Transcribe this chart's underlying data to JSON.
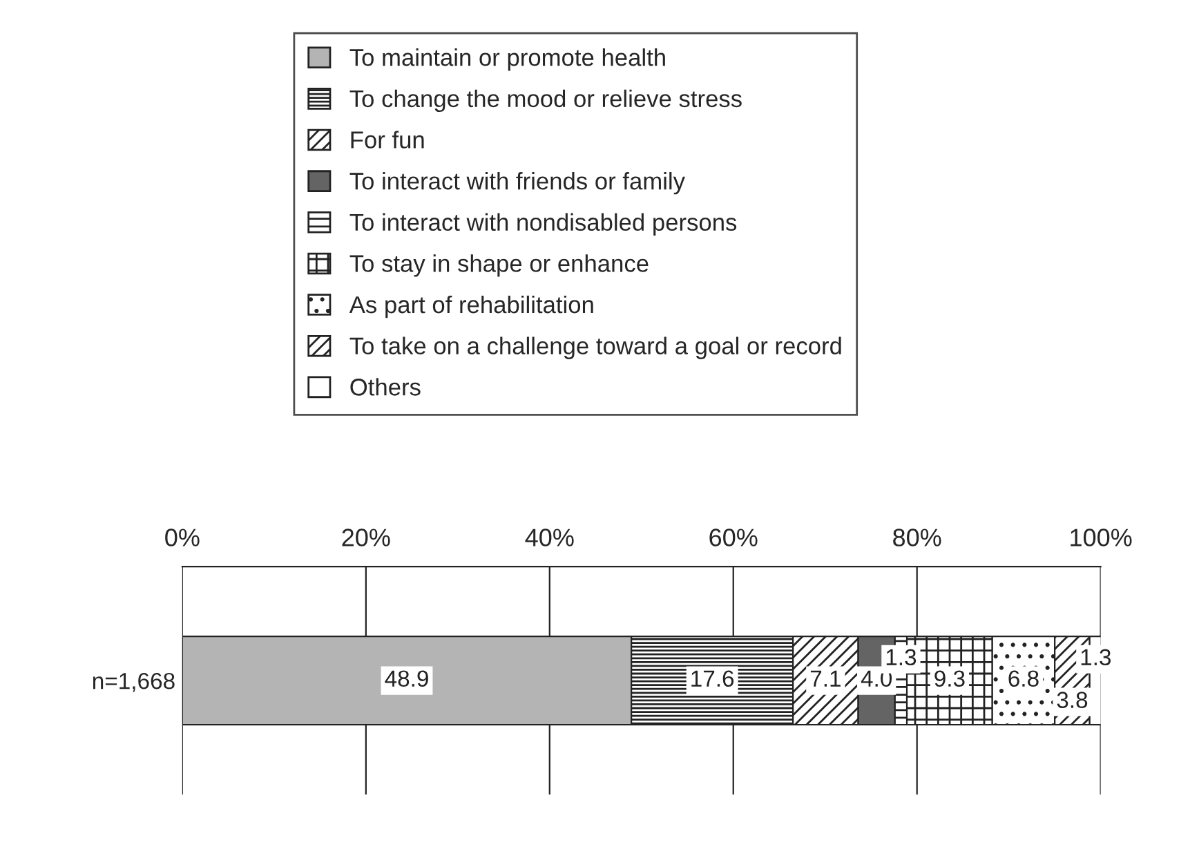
{
  "chart_data": {
    "type": "bar",
    "orientation": "horizontal",
    "stacked": true,
    "categories": [
      "n=1,668"
    ],
    "series": [
      {
        "name": "To maintain or promote health",
        "color": "#b4b4b4",
        "values": [
          48.9
        ],
        "value_labels": [
          "48.9"
        ]
      },
      {
        "name": "To change the mood or relieve stress",
        "color": "#222222",
        "values": [
          17.6
        ],
        "value_labels": [
          "17.6"
        ]
      },
      {
        "name": "For fun",
        "color": "#222222",
        "values": [
          7.1
        ],
        "value_labels": [
          "7.1"
        ]
      },
      {
        "name": "To interact with friends or family",
        "color": "#646464",
        "values": [
          4.0
        ],
        "value_labels": [
          "4.0"
        ]
      },
      {
        "name": "To interact with nondisabled persons",
        "color": "#222222",
        "values": [
          1.3
        ],
        "value_labels": [
          "1.3"
        ]
      },
      {
        "name": "To stay in shape or enhance",
        "color": "#222222",
        "values": [
          9.3
        ],
        "value_labels": [
          "9.3"
        ]
      },
      {
        "name": "As part of rehabilitation",
        "color": "#222222",
        "values": [
          6.8
        ],
        "value_labels": [
          "6.8"
        ]
      },
      {
        "name": "To take on a challenge toward a goal or record",
        "color": "#222222",
        "values": [
          3.8
        ],
        "value_labels": [
          "3.8"
        ]
      },
      {
        "name": "Others",
        "color": "#ffffff",
        "values": [
          1.3
        ],
        "value_labels": [
          "1.3"
        ]
      }
    ],
    "xlim": [
      0,
      100
    ],
    "xticks": [
      {
        "value": 0,
        "label": "0%"
      },
      {
        "value": 20,
        "label": "20%"
      },
      {
        "value": 40,
        "label": "40%"
      },
      {
        "value": 60,
        "label": "60%"
      },
      {
        "value": 80,
        "label": "80%"
      },
      {
        "value": 100,
        "label": "100%"
      }
    ],
    "grid": "x",
    "legend": "top"
  }
}
